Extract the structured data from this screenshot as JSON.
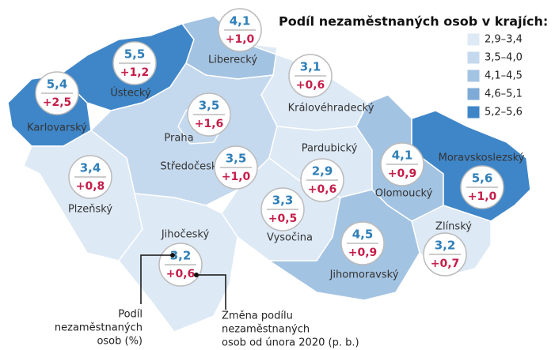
{
  "title": "Podíl nezaměstnaných osob v krajích:",
  "legend": [
    {
      "label": "2,9–3,4",
      "color": "#dde9f5"
    },
    {
      "label": "3,5–4,0",
      "color": "#c5d9ee"
    },
    {
      "label": "4,1–4,5",
      "color": "#a3c3e2"
    },
    {
      "label": "4,6–5,1",
      "color": "#7eaad7"
    },
    {
      "label": "5,2–5,6",
      "color": "#3f86c8"
    }
  ],
  "regions": [
    {
      "name": "Karlovarský",
      "value": "5,4",
      "change": "+2,5",
      "color": "#3f86c8"
    },
    {
      "name": "Ústecký",
      "value": "5,5",
      "change": "+1,2",
      "color": "#3f86c8"
    },
    {
      "name": "Liberecký",
      "value": "4,1",
      "change": "+1,0",
      "color": "#a3c3e2"
    },
    {
      "name": "Královéhradecký",
      "value": "3,1",
      "change": "+0,6",
      "color": "#dde9f5"
    },
    {
      "name": "Středočeský",
      "value": "3,5",
      "change": "+1,0",
      "color": "#c5d9ee"
    },
    {
      "name": "Praha",
      "value": "3,5",
      "change": "+1,6",
      "color": "#c5d9ee"
    },
    {
      "name": "Plzeňský",
      "value": "3,4",
      "change": "+0,8",
      "color": "#dde9f5"
    },
    {
      "name": "Pardubický",
      "value": "2,9",
      "change": "+0,6",
      "color": "#dde9f5"
    },
    {
      "name": "Vysočina",
      "value": "3,3",
      "change": "+0,5",
      "color": "#dde9f5"
    },
    {
      "name": "Jihočeský",
      "value": "3,2",
      "change": "+0,6",
      "color": "#dde9f5"
    },
    {
      "name": "Jihomoravský",
      "value": "4,5",
      "change": "+0,9",
      "color": "#a3c3e2"
    },
    {
      "name": "Olomoucký",
      "value": "4,1",
      "change": "+0,9",
      "color": "#a3c3e2"
    },
    {
      "name": "Moravskoslezský",
      "value": "5,6",
      "change": "+1,0",
      "color": "#3f86c8"
    },
    {
      "name": "Zlínský",
      "value": "3,2",
      "change": "+0,7",
      "color": "#dde9f5"
    }
  ],
  "annotations": [
    {
      "lines": [
        "Podíl",
        "nezaměstnaných",
        "osob (%)"
      ]
    },
    {
      "lines": [
        "Změna podílu",
        "nezaměstnaných",
        "osob od února 2020 (p. b.)"
      ]
    }
  ]
}
